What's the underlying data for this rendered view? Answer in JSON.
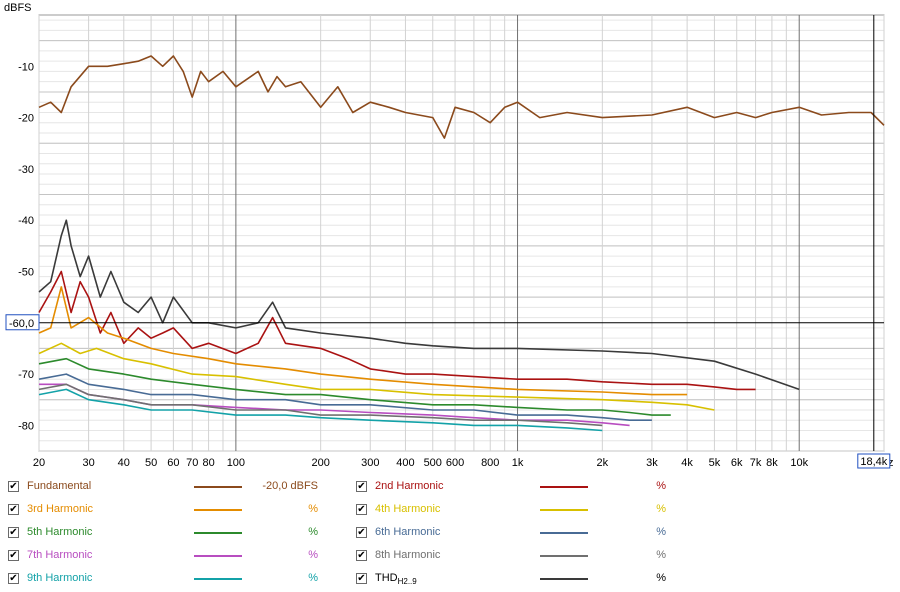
{
  "chart_data": {
    "type": "line",
    "ylabel": "dBFS",
    "xunit": "Hz",
    "xscale": "log",
    "xlim": [
      20,
      20000
    ],
    "ylim": [
      -85,
      0
    ],
    "grid": true,
    "cursor": {
      "y_readout": "-60,0",
      "x_readout": "18,4k",
      "x_value": 18400,
      "y_value": -60
    },
    "y_ticks": [
      {
        "value": -10,
        "label": "-10"
      },
      {
        "value": -20,
        "label": "-20"
      },
      {
        "value": -30,
        "label": "-30"
      },
      {
        "value": -40,
        "label": "-40"
      },
      {
        "value": -50,
        "label": "-50"
      },
      {
        "value": -70,
        "label": "-70"
      },
      {
        "value": -80,
        "label": "-80"
      }
    ],
    "x_ticks": [
      {
        "value": 20,
        "label": "20"
      },
      {
        "value": 30,
        "label": "30"
      },
      {
        "value": 40,
        "label": "40"
      },
      {
        "value": 50,
        "label": "50"
      },
      {
        "value": 60,
        "label": "60"
      },
      {
        "value": 70,
        "label": "70"
      },
      {
        "value": 80,
        "label": "80"
      },
      {
        "value": 100,
        "label": "100"
      },
      {
        "value": 200,
        "label": "200"
      },
      {
        "value": 300,
        "label": "300"
      },
      {
        "value": 400,
        "label": "400"
      },
      {
        "value": 500,
        "label": "500"
      },
      {
        "value": 600,
        "label": "600"
      },
      {
        "value": 800,
        "label": "800"
      },
      {
        "value": 1000,
        "label": "1k"
      },
      {
        "value": 2000,
        "label": "2k"
      },
      {
        "value": 3000,
        "label": "3k"
      },
      {
        "value": 4000,
        "label": "4k"
      },
      {
        "value": 5000,
        "label": "5k"
      },
      {
        "value": 6000,
        "label": "6k"
      },
      {
        "value": 7000,
        "label": "7k"
      },
      {
        "value": 8000,
        "label": "8k"
      },
      {
        "value": 10000,
        "label": "10k"
      }
    ],
    "series": [
      {
        "name": "Fundamental",
        "color": "#8B4A1C",
        "x": [
          20,
          22,
          24,
          26,
          30,
          35,
          40,
          45,
          50,
          55,
          60,
          65,
          70,
          75,
          80,
          90,
          100,
          120,
          130,
          140,
          150,
          170,
          200,
          230,
          260,
          300,
          350,
          400,
          500,
          550,
          600,
          700,
          800,
          900,
          1000,
          1200,
          1500,
          2000,
          3000,
          4000,
          5000,
          6000,
          7000,
          8000,
          10000,
          12000,
          15000,
          18000,
          20000
        ],
        "y": [
          -18,
          -17,
          -19,
          -14,
          -10,
          -10,
          -9.5,
          -9,
          -8,
          -10,
          -8,
          -11,
          -16,
          -11,
          -13,
          -11,
          -14,
          -11,
          -15,
          -12,
          -14,
          -13,
          -18,
          -14,
          -19,
          -17,
          -18,
          -19,
          -20,
          -24,
          -18,
          -19,
          -21,
          -18,
          -17,
          -20,
          -19,
          -20,
          -19.5,
          -18,
          -20,
          -19,
          -20,
          -19,
          -18,
          -19.5,
          -19,
          -19,
          -21.5
        ]
      },
      {
        "name": "2nd Harmonic",
        "color": "#AA1212",
        "x": [
          20,
          22,
          24,
          26,
          28,
          30,
          33,
          36,
          40,
          45,
          50,
          55,
          60,
          70,
          80,
          100,
          120,
          135,
          150,
          200,
          250,
          300,
          400,
          500,
          700,
          1000,
          1500,
          2000,
          3000,
          4000,
          5000,
          6000,
          7000
        ],
        "y": [
          -58,
          -54,
          -50,
          -58,
          -52,
          -55,
          -62,
          -58,
          -64,
          -61,
          -63,
          -62,
          -61,
          -65,
          -64,
          -66,
          -64,
          -59,
          -64,
          -65,
          -67,
          -69,
          -70,
          -70,
          -70.5,
          -71,
          -71,
          -71.5,
          -72,
          -72,
          -72.5,
          -73,
          -73
        ]
      },
      {
        "name": "3rd Harmonic",
        "color": "#E48C00",
        "x": [
          20,
          22,
          24,
          26,
          30,
          35,
          40,
          50,
          60,
          80,
          100,
          150,
          200,
          300,
          500,
          1000,
          2000,
          3000,
          4000
        ],
        "y": [
          -62,
          -61,
          -53,
          -61,
          -59,
          -62,
          -63,
          -65,
          -66,
          -67,
          -68,
          -69,
          -70,
          -71,
          -72,
          -73,
          -73.5,
          -74,
          -74
        ]
      },
      {
        "name": "4th Harmonic",
        "color": "#D8C000",
        "x": [
          20,
          24,
          28,
          32,
          40,
          50,
          70,
          100,
          150,
          200,
          300,
          500,
          1000,
          2000,
          3000,
          4000,
          5000
        ],
        "y": [
          -66,
          -64,
          -66,
          -65,
          -67,
          -68,
          -70,
          -70.5,
          -72,
          -73,
          -73,
          -74,
          -74.5,
          -75,
          -75.5,
          -76,
          -77
        ]
      },
      {
        "name": "5th Harmonic",
        "color": "#2C8A2C",
        "x": [
          20,
          25,
          30,
          40,
          50,
          70,
          100,
          150,
          200,
          300,
          500,
          700,
          1000,
          1500,
          2000,
          2500,
          3000,
          3500
        ],
        "y": [
          -68,
          -67,
          -69,
          -70,
          -71,
          -72,
          -73,
          -74,
          -74,
          -75,
          -76,
          -76,
          -76.5,
          -77,
          -77,
          -77.5,
          -78,
          -78
        ]
      },
      {
        "name": "6th Harmonic",
        "color": "#486B95",
        "x": [
          20,
          25,
          30,
          40,
          50,
          70,
          100,
          150,
          200,
          300,
          500,
          700,
          1000,
          1500,
          2000,
          2500,
          3000
        ],
        "y": [
          -71,
          -70,
          -72,
          -73,
          -74,
          -74,
          -75,
          -75,
          -76,
          -76,
          -77,
          -77,
          -78,
          -78,
          -78.5,
          -79,
          -79
        ]
      },
      {
        "name": "7th Harmonic",
        "color": "#B84DC0",
        "x": [
          20,
          25,
          30,
          40,
          50,
          70,
          100,
          150,
          200,
          300,
          500,
          700,
          1000,
          1500,
          2000,
          2500
        ],
        "y": [
          -72,
          -72,
          -74,
          -75,
          -76,
          -76,
          -76.5,
          -77,
          -77,
          -77.5,
          -78,
          -78.5,
          -79,
          -79,
          -79.5,
          -80
        ]
      },
      {
        "name": "8th Harmonic",
        "color": "#707070",
        "x": [
          20,
          25,
          30,
          40,
          50,
          70,
          100,
          150,
          200,
          300,
          500,
          700,
          1000,
          1500,
          2000
        ],
        "y": [
          -73,
          -72,
          -74,
          -75,
          -76,
          -76,
          -77,
          -77,
          -78,
          -78,
          -78.5,
          -79,
          -79,
          -79.5,
          -80
        ]
      },
      {
        "name": "9th Harmonic",
        "color": "#13A2A8",
        "x": [
          20,
          25,
          30,
          40,
          50,
          70,
          100,
          150,
          200,
          300,
          500,
          700,
          1000,
          1500,
          2000
        ],
        "y": [
          -74,
          -73,
          -75,
          -76,
          -77,
          -77,
          -78,
          -78,
          -78.5,
          -79,
          -79.5,
          -80,
          -80,
          -80.5,
          -81
        ]
      },
      {
        "name": "THD",
        "color": "#3A3A3A",
        "x": [
          20,
          22,
          24,
          25,
          26,
          28,
          30,
          33,
          36,
          40,
          45,
          50,
          55,
          60,
          70,
          80,
          100,
          120,
          135,
          150,
          200,
          300,
          400,
          500,
          700,
          1000,
          2000,
          3000,
          5000,
          7000,
          10000
        ],
        "y": [
          -54,
          -52,
          -43,
          -40,
          -45,
          -51,
          -47,
          -55,
          -50,
          -56,
          -58,
          -55,
          -60,
          -55,
          -60,
          -60,
          -61,
          -60,
          -56,
          -61,
          -62,
          -63,
          -64,
          -64.5,
          -65,
          -65,
          -65.5,
          -66,
          -67.5,
          -70,
          -73
        ]
      }
    ]
  },
  "legend": {
    "items": [
      {
        "label": "Fundamental",
        "value": "-20,0 dBFS",
        "color": "#8B4A1C"
      },
      {
        "label": "2nd Harmonic",
        "value": "%",
        "color": "#AA1212"
      },
      {
        "label": "3rd Harmonic",
        "value": "%",
        "color": "#E48C00"
      },
      {
        "label": "4th Harmonic",
        "value": "%",
        "color": "#D8C000"
      },
      {
        "label": "5th Harmonic",
        "value": "%",
        "color": "#2C8A2C"
      },
      {
        "label": "6th Harmonic",
        "value": "%",
        "color": "#486B95"
      },
      {
        "label": "7th Harmonic",
        "value": "%",
        "color": "#B84DC0"
      },
      {
        "label": "8th Harmonic",
        "value": "%",
        "color": "#707070"
      },
      {
        "label": "9th Harmonic",
        "value": "%",
        "color": "#13A2A8"
      },
      {
        "label": "THD",
        "label_sub": "H2..9",
        "value": "%",
        "color": "#3A3A3A"
      }
    ],
    "check_glyph": "✔"
  }
}
